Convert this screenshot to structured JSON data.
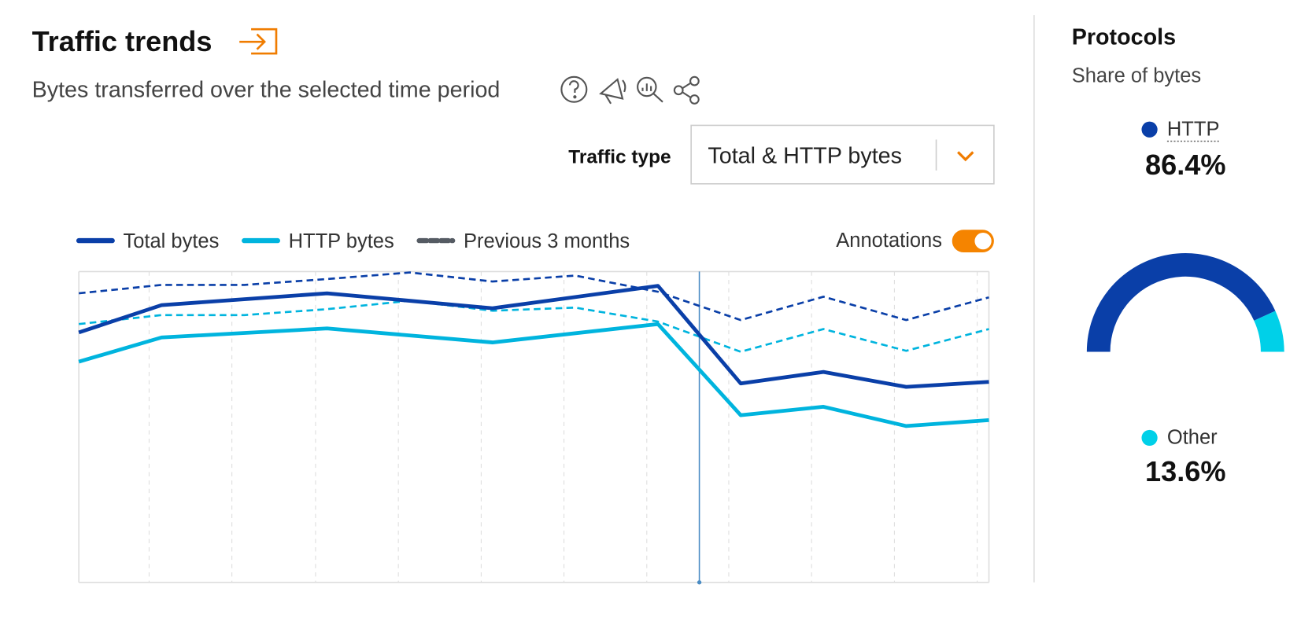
{
  "header": {
    "title": "Traffic trends",
    "subtitle": "Bytes transferred over the selected time period"
  },
  "controls": {
    "traffic_type_label": "Traffic type",
    "traffic_type_value": "Total & HTTP bytes",
    "annotations_label": "Annotations"
  },
  "chart_data": {
    "type": "line",
    "xlim": [
      0,
      11
    ],
    "ylim": [
      0,
      100
    ],
    "annotation_x": 7.5,
    "series": [
      {
        "name": "Total bytes",
        "color": "#0a3fa8",
        "x": [
          0,
          1,
          3,
          5,
          7,
          8,
          9,
          10,
          11
        ],
        "values": [
          80.4,
          89.2,
          93.0,
          88.2,
          95.4,
          64.0,
          67.7,
          62.9,
          64.5
        ]
      },
      {
        "name": "HTTP bytes",
        "color": "#00b4de",
        "x": [
          0,
          1,
          3,
          5,
          7,
          8,
          9,
          10,
          11
        ],
        "values": [
          71.0,
          78.8,
          81.7,
          77.2,
          83.1,
          53.8,
          56.5,
          50.3,
          52.2
        ]
      }
    ],
    "comparison": {
      "name": "Previous 3 months",
      "color": "#555b63",
      "series": [
        {
          "color": "#0a3fa8",
          "x": [
            0,
            1,
            2,
            3,
            4,
            5,
            6,
            7,
            8,
            9,
            10,
            11
          ],
          "values": [
            93.0,
            95.7,
            95.7,
            97.6,
            99.7,
            96.8,
            98.7,
            93.5,
            84.4,
            91.9,
            84.4,
            91.7
          ]
        },
        {
          "color": "#00b4de",
          "x": [
            0,
            1,
            2,
            3,
            4,
            5,
            6,
            7,
            8,
            9,
            10,
            11
          ],
          "values": [
            83.1,
            86.0,
            86.0,
            87.9,
            90.6,
            87.4,
            88.4,
            83.9,
            74.2,
            81.5,
            74.5,
            81.5
          ]
        }
      ]
    }
  },
  "protocols": {
    "title": "Protocols",
    "subtitle": "Share of bytes",
    "chart_data": {
      "type": "gauge",
      "categories": [
        "HTTP",
        "Other"
      ],
      "values": [
        86.4,
        13.6
      ],
      "value_labels": [
        "86.4%",
        "13.6%"
      ],
      "colors": [
        "#0a3fa8",
        "#00d0e8"
      ]
    }
  }
}
